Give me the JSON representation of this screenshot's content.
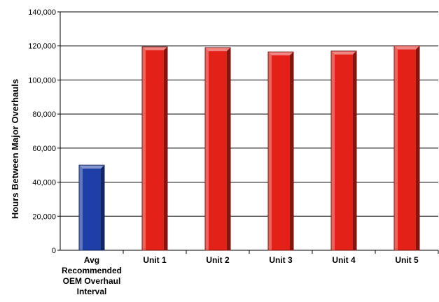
{
  "chart_data": {
    "type": "bar",
    "title": "",
    "xlabel": "",
    "ylabel": "Hours Between Major Overhauls",
    "ylim": [
      0,
      140000
    ],
    "yticks": [
      0,
      20000,
      40000,
      60000,
      80000,
      100000,
      120000,
      140000
    ],
    "ytick_labels": [
      "0",
      "20,000",
      "40,000",
      "60,000",
      "80,000",
      "100,000",
      "120,000",
      "140,000"
    ],
    "grid": true,
    "categories": [
      [
        "Avg",
        "Recommended",
        "OEM Overhaul",
        "Interval"
      ],
      [
        "Unit 1"
      ],
      [
        "Unit 2"
      ],
      [
        "Unit 3"
      ],
      [
        "Unit 4"
      ],
      [
        "Unit 5"
      ]
    ],
    "values": [
      50000,
      119500,
      119000,
      116500,
      117000,
      120000
    ],
    "colors": [
      "#1f3fa8",
      "#e32119",
      "#e32119",
      "#e32119",
      "#e32119",
      "#e32119"
    ]
  }
}
